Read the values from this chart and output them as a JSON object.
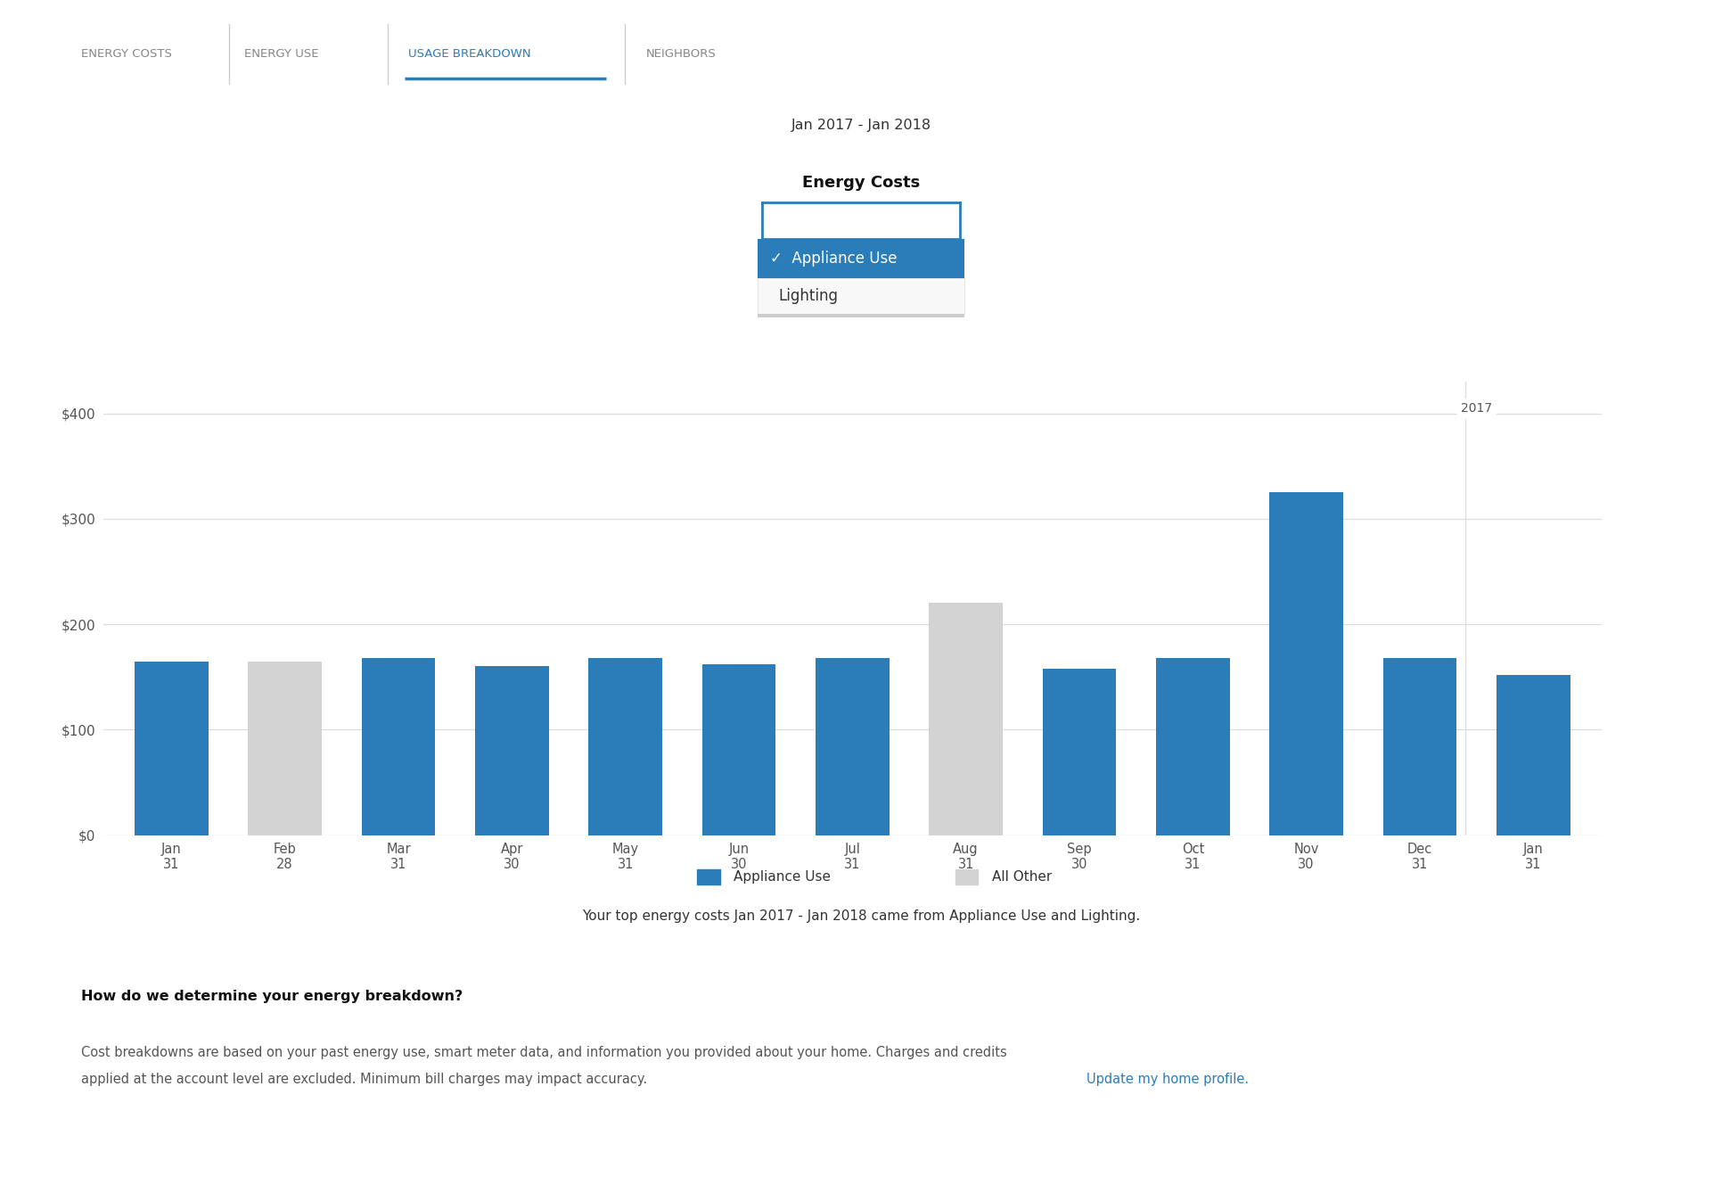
{
  "tab_items": [
    "ENERGY COSTS",
    "ENERGY USE",
    "USAGE BREAKDOWN",
    "NEIGHBORS"
  ],
  "active_tab_idx": 2,
  "date_range": "Jan 2017 - Jan 2018",
  "dropdown_label": "Energy Costs",
  "dropdown_options": [
    "Appliance Use",
    "Lighting"
  ],
  "dropdown_selected": "Appliance Use",
  "months": [
    "Jan\n31",
    "Feb\n28",
    "Mar\n31",
    "Apr\n30",
    "May\n31",
    "Jun\n30",
    "Jul\n31",
    "Aug\n31",
    "Sep\n30",
    "Oct\n31",
    "Nov\n30",
    "Dec\n31",
    "Jan\n31"
  ],
  "values": [
    165,
    165,
    168,
    160,
    168,
    162,
    168,
    220,
    158,
    168,
    325,
    168,
    152
  ],
  "is_blue": [
    true,
    false,
    true,
    true,
    true,
    true,
    true,
    false,
    true,
    true,
    true,
    true,
    true
  ],
  "year_label": "2017",
  "y_ticks": [
    0,
    100,
    200,
    300,
    400
  ],
  "y_tick_labels": [
    "$0",
    "$100",
    "$200",
    "$300",
    "$400"
  ],
  "ylim": [
    0,
    430
  ],
  "blue_color": "#2B7DB9",
  "gray_color": "#D3D3D3",
  "legend_items": [
    "Appliance Use",
    "All Other"
  ],
  "caption": "Your top energy costs Jan 2017 - Jan 2018 came from Appliance Use and Lighting.",
  "how_title": "How do we determine your energy breakdown?",
  "how_body1": "Cost breakdowns are based on your past energy use, smart meter data, and information you provided about your home. Charges and credits",
  "how_body2": "applied at the account level are excluded. Minimum bill charges may impact accuracy. ",
  "link_text": "Update my home profile.",
  "tab_color_active": "#2B7DB9",
  "tab_color_inactive": "#888888",
  "background_color": "#FFFFFF",
  "grid_color": "#DDDDDD",
  "text_dark": "#333333",
  "text_mid": "#555555"
}
